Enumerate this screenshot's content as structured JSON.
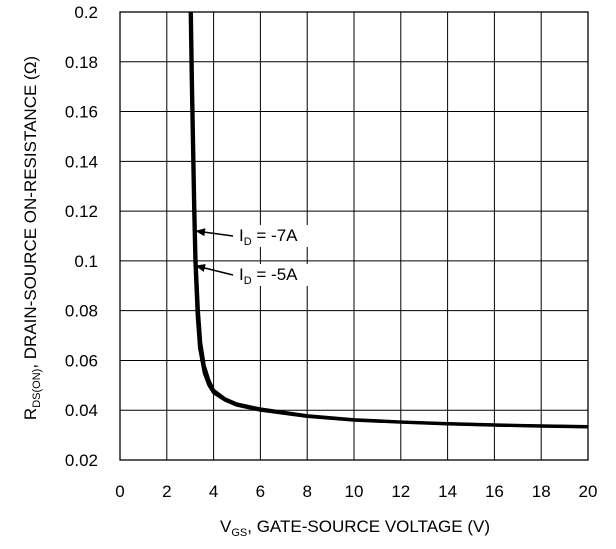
{
  "chart_data": {
    "type": "line",
    "title": "",
    "xlabel": {
      "main": "V",
      "sub": "GS",
      "rest": ", GATE-SOURCE VOLTAGE (V)"
    },
    "ylabel": {
      "main": "R",
      "sub": "DS(ON)",
      "rest": ", DRAIN-SOURCE ON-RESISTANCE (Ω)"
    },
    "xlim": [
      0,
      20
    ],
    "ylim": [
      0.02,
      0.2
    ],
    "x_ticks": [
      0,
      2,
      4,
      6,
      8,
      10,
      12,
      14,
      16,
      18,
      20
    ],
    "x_tick_labels": [
      "0",
      "2",
      "4",
      "6",
      "8",
      "10",
      "12",
      "14",
      "16",
      "18",
      "20"
    ],
    "y_ticks": [
      0.02,
      0.04,
      0.06,
      0.08,
      0.1,
      0.12,
      0.14,
      0.16,
      0.18,
      0.2
    ],
    "y_tick_labels": [
      "0.02",
      "0.04",
      "0.06",
      "0.08",
      "0.1",
      "0.12",
      "0.14",
      "0.16",
      "0.18",
      "0.2"
    ],
    "grid": true,
    "line_color": "#000000",
    "series": [
      {
        "x": [
          3.0,
          3.05,
          3.1,
          3.15,
          3.2,
          3.3,
          3.4,
          3.6,
          3.8,
          4.0,
          4.5,
          5.0,
          6.0,
          8.0,
          10.0,
          12.0,
          14.0,
          16.0,
          18.0,
          20.0
        ],
        "y": [
          0.2,
          0.17,
          0.145,
          0.12,
          0.1,
          0.078,
          0.065,
          0.055,
          0.05,
          0.047,
          0.044,
          0.042,
          0.04,
          0.0375,
          0.036,
          0.0352,
          0.0345,
          0.034,
          0.0336,
          0.0333
        ]
      },
      {
        "x": [
          3.05,
          3.1,
          3.15,
          3.2,
          3.25,
          3.35,
          3.45,
          3.6,
          3.8,
          4.0,
          4.5,
          5.0,
          6.0,
          8.0,
          10.0,
          12.0,
          14.0,
          16.0,
          18.0,
          20.0
        ],
        "y": [
          0.2,
          0.17,
          0.145,
          0.12,
          0.1,
          0.08,
          0.067,
          0.058,
          0.052,
          0.048,
          0.0445,
          0.0425,
          0.0405,
          0.0378,
          0.0362,
          0.0353,
          0.0346,
          0.0341,
          0.0337,
          0.0334
        ]
      }
    ],
    "annotations": [
      {
        "main": "I",
        "sub": "D",
        "rest": " = -7A",
        "x": 3.25,
        "y": 0.112
      },
      {
        "main": "I",
        "sub": "D",
        "rest": " = -5A",
        "x": 3.25,
        "y": 0.098
      }
    ]
  }
}
